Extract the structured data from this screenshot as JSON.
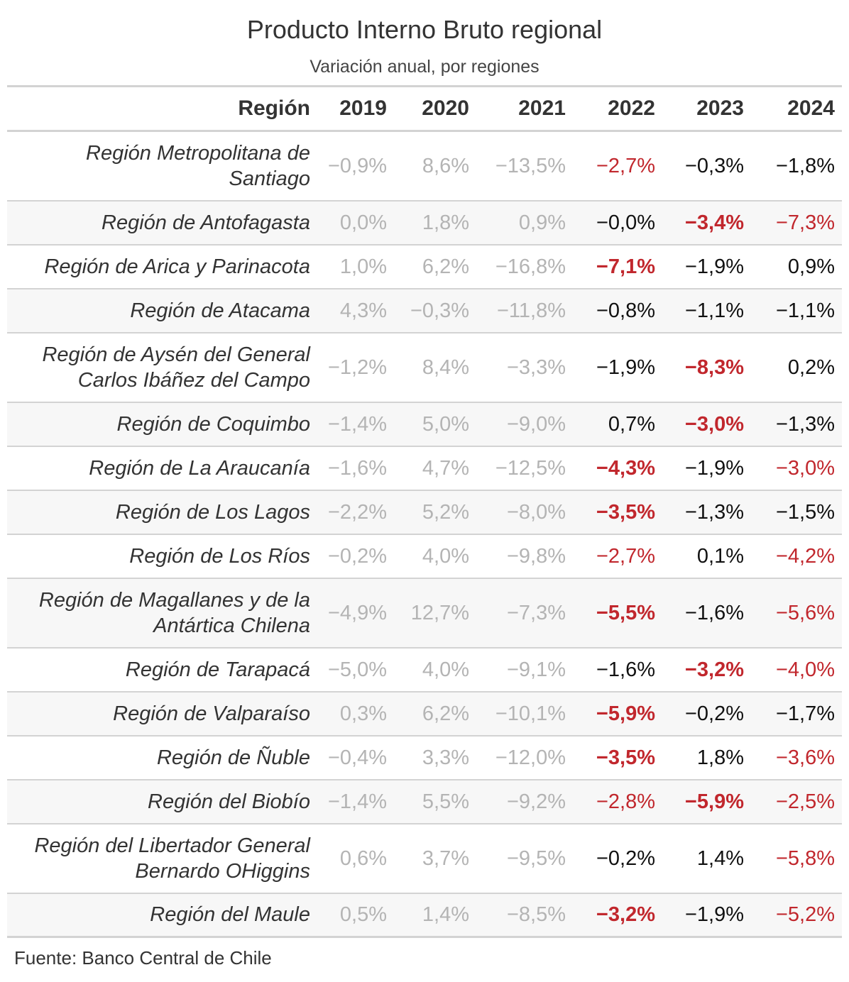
{
  "title": "Producto Interno Bruto regional",
  "subtitle": "Variación anual, por regiones",
  "columns": [
    "Región",
    "2019",
    "2020",
    "2021",
    "2022",
    "2023",
    "2024"
  ],
  "rows": [
    {
      "region": "Región Metropolitana de Santiago",
      "v2019": "−0,9%",
      "v2020": "8,6%",
      "v2021": "−13,5%",
      "v2022": "−2,7%",
      "v2023": "−0,3%",
      "v2024": "−1,8%"
    },
    {
      "region": "Región de Antofagasta",
      "v2019": "0,0%",
      "v2020": "1,8%",
      "v2021": "0,9%",
      "v2022": "−0,0%",
      "v2023": "−3,4%",
      "v2024": "−7,3%"
    },
    {
      "region": "Región de Arica y Parinacota",
      "v2019": "1,0%",
      "v2020": "6,2%",
      "v2021": "−16,8%",
      "v2022": "−7,1%",
      "v2023": "−1,9%",
      "v2024": "0,9%"
    },
    {
      "region": "Región de Atacama",
      "v2019": "4,3%",
      "v2020": "−0,3%",
      "v2021": "−11,8%",
      "v2022": "−0,8%",
      "v2023": "−1,1%",
      "v2024": "−1,1%"
    },
    {
      "region": "Región de Aysén del General Carlos Ibáñez del Campo",
      "v2019": "−1,2%",
      "v2020": "8,4%",
      "v2021": "−3,3%",
      "v2022": "−1,9%",
      "v2023": "−8,3%",
      "v2024": "0,2%"
    },
    {
      "region": "Región de Coquimbo",
      "v2019": "−1,4%",
      "v2020": "5,0%",
      "v2021": "−9,0%",
      "v2022": "0,7%",
      "v2023": "−3,0%",
      "v2024": "−1,3%"
    },
    {
      "region": "Región de La Araucanía",
      "v2019": "−1,6%",
      "v2020": "4,7%",
      "v2021": "−12,5%",
      "v2022": "−4,3%",
      "v2023": "−1,9%",
      "v2024": "−3,0%"
    },
    {
      "region": "Región de Los Lagos",
      "v2019": "−2,2%",
      "v2020": "5,2%",
      "v2021": "−8,0%",
      "v2022": "−3,5%",
      "v2023": "−1,3%",
      "v2024": "−1,5%"
    },
    {
      "region": "Región de Los Ríos",
      "v2019": "−0,2%",
      "v2020": "4,0%",
      "v2021": "−9,8%",
      "v2022": "−2,7%",
      "v2023": "0,1%",
      "v2024": "−4,2%"
    },
    {
      "region": "Región de Magallanes y de la Antártica Chilena",
      "v2019": "−4,9%",
      "v2020": "12,7%",
      "v2021": "−7,3%",
      "v2022": "−5,5%",
      "v2023": "−1,6%",
      "v2024": "−5,6%"
    },
    {
      "region": "Región de Tarapacá",
      "v2019": "−5,0%",
      "v2020": "4,0%",
      "v2021": "−9,1%",
      "v2022": "−1,6%",
      "v2023": "−3,2%",
      "v2024": "−4,0%"
    },
    {
      "region": "Región de Valparaíso",
      "v2019": "0,3%",
      "v2020": "6,2%",
      "v2021": "−10,1%",
      "v2022": "−5,9%",
      "v2023": "−0,2%",
      "v2024": "−1,7%"
    },
    {
      "region": "Región de Ñuble",
      "v2019": "−0,4%",
      "v2020": "3,3%",
      "v2021": "−12,0%",
      "v2022": "−3,5%",
      "v2023": "1,8%",
      "v2024": "−3,6%"
    },
    {
      "region": "Región del Biobío",
      "v2019": "−1,4%",
      "v2020": "5,5%",
      "v2021": "−9,2%",
      "v2022": "−2,8%",
      "v2023": "−5,9%",
      "v2024": "−2,5%"
    },
    {
      "region": "Región del Libertador General Bernardo OHiggins",
      "v2019": "0,6%",
      "v2020": "3,7%",
      "v2021": "−9,5%",
      "v2022": "−0,2%",
      "v2023": "1,4%",
      "v2024": "−5,8%"
    },
    {
      "region": "Región del Maule",
      "v2019": "0,5%",
      "v2020": "1,4%",
      "v2021": "−8,5%",
      "v2022": "−3,2%",
      "v2023": "−1,9%",
      "v2024": "−5,2%"
    }
  ],
  "source": "Fuente: Banco Central de Chile"
}
